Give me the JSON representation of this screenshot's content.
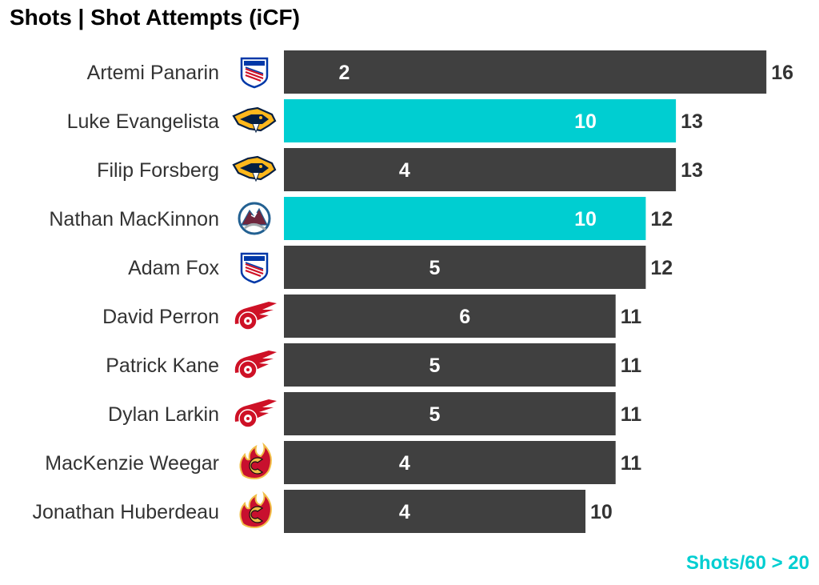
{
  "colors": {
    "bar_default": "#404040",
    "bar_highlight": "#00CED1",
    "label_text": "#333333",
    "bar_label_text": "#ffffff",
    "footnote": "#00CED1"
  },
  "chart_data": {
    "type": "bar",
    "orientation": "horizontal",
    "title": "Shots | Shot Attempts (iCF)",
    "footnote": "Shots/60 > 20",
    "xlim": [
      0,
      16
    ],
    "legend": "none",
    "grid": false,
    "categories": [
      "Artemi Panarin",
      "Luke Evangelista",
      "Filip Forsberg",
      "Nathan MacKinnon",
      "Adam Fox",
      "David Perron",
      "Patrick Kane",
      "Dylan Larkin",
      "MacKenzie Weegar",
      "Jonathan Huberdeau"
    ],
    "teams": [
      "rangers-logo-icon",
      "predators-logo-icon",
      "predators-logo-icon",
      "avalanche-logo-icon",
      "rangers-logo-icon",
      "red-wings-logo-icon",
      "red-wings-logo-icon",
      "red-wings-logo-icon",
      "flames-logo-icon",
      "flames-logo-icon"
    ],
    "highlighted": [
      false,
      true,
      false,
      true,
      false,
      false,
      false,
      false,
      false,
      false
    ],
    "series": [
      {
        "values": [
          16,
          13,
          13,
          12,
          12,
          11,
          11,
          11,
          11,
          10
        ]
      },
      {
        "values": [
          2,
          10,
          4,
          10,
          5,
          6,
          5,
          5,
          4,
          4
        ]
      }
    ]
  }
}
